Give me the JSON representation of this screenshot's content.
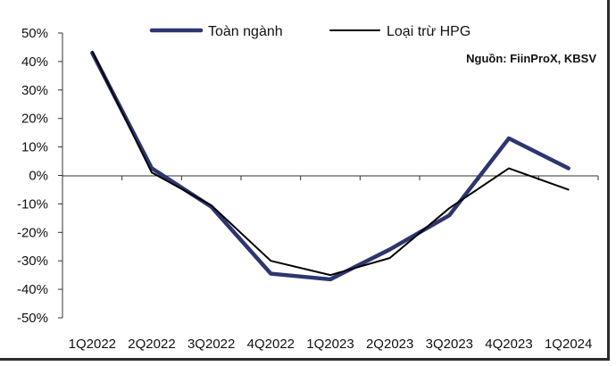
{
  "chart_data": {
    "type": "line",
    "categories": [
      "1Q2022",
      "2Q2022",
      "3Q2022",
      "4Q2022",
      "1Q2023",
      "2Q2023",
      "3Q2023",
      "4Q2023",
      "1Q2024"
    ],
    "series": [
      {
        "name": "Toàn ngành",
        "color": "#2e3670",
        "values": [
          43,
          2.5,
          -11,
          -34.5,
          -36.5,
          -26,
          -14,
          13,
          2.5
        ]
      },
      {
        "name": "Loại trừ HPG",
        "color": "#000000",
        "values": [
          43.5,
          1,
          -10.5,
          -30,
          -35,
          -29,
          -11.5,
          2.5,
          -5
        ]
      }
    ],
    "yticks": [
      "50%",
      "40%",
      "30%",
      "20%",
      "10%",
      "0%",
      "-10%",
      "-20%",
      "-30%",
      "-40%",
      "-50%"
    ],
    "ylim": [
      -50,
      50
    ],
    "source": "Nguồn: FiinProX, KBSV",
    "legend_position": "top-center",
    "grid": false
  }
}
